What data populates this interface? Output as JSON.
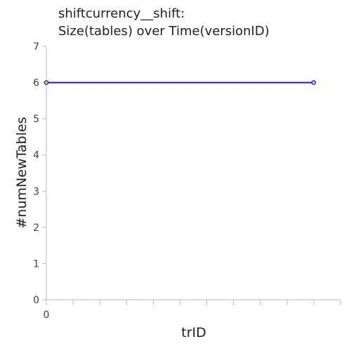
{
  "chart_data": {
    "type": "line",
    "title": [
      "shiftcurrency__shift:",
      "Size(tables) over Time(versionID)"
    ],
    "xlabel": "trID",
    "ylabel": "#numNewTables",
    "xlim": [
      0,
      11
    ],
    "ylim": [
      0,
      7
    ],
    "x_ticks": [
      0,
      1,
      2,
      3,
      4,
      5,
      6,
      7,
      8,
      9,
      10,
      11
    ],
    "x_tick_labels": [
      "0",
      "",
      "",
      "",
      "",
      "",
      "",
      "",
      "",
      "",
      "",
      ""
    ],
    "y_ticks": [
      0,
      1,
      2,
      3,
      4,
      5,
      6,
      7
    ],
    "y_tick_labels": [
      "0",
      "1",
      "2",
      "3",
      "4",
      "5",
      "6",
      "7"
    ],
    "grid": false,
    "series": [
      {
        "color": "#1a1acc",
        "x": [
          0,
          10
        ],
        "y": [
          6,
          6
        ]
      }
    ]
  }
}
